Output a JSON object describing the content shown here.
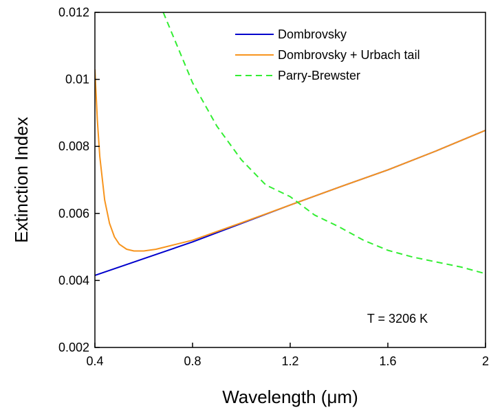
{
  "chart_data": {
    "type": "line",
    "xlabel": "Wavelength (μm)",
    "ylabel": "Extinction Index",
    "xlim": [
      0.4,
      2.0
    ],
    "ylim": [
      0.002,
      0.012
    ],
    "xticks": [
      "0.4",
      "0.8",
      "1.2",
      "1.6",
      "2"
    ],
    "yticks": [
      "0.002",
      "0.004",
      "0.006",
      "0.008",
      "0.01",
      "0.012"
    ],
    "grid": false,
    "legend_position": "top-right",
    "annotation": "T = 3206 K",
    "series": [
      {
        "name": "Dombrovsky",
        "color": "#0000cc",
        "style": "solid",
        "x": [
          0.4,
          0.6,
          0.8,
          1.0,
          1.2,
          1.4,
          1.6,
          1.8,
          2.0
        ],
        "y": [
          0.00415,
          0.00465,
          0.00515,
          0.0057,
          0.00625,
          0.00678,
          0.0073,
          0.00787,
          0.00848
        ]
      },
      {
        "name": "Dombrovsky + Urbach tail",
        "color": "#f7941d",
        "style": "solid",
        "x": [
          0.4,
          0.41,
          0.42,
          0.44,
          0.46,
          0.48,
          0.5,
          0.53,
          0.56,
          0.6,
          0.65,
          0.7,
          0.8,
          1.0,
          1.2,
          1.4,
          1.6,
          1.8,
          2.0
        ],
        "y": [
          0.0103,
          0.0088,
          0.0077,
          0.0064,
          0.0057,
          0.0053,
          0.00508,
          0.00493,
          0.00488,
          0.00488,
          0.00493,
          0.00502,
          0.0052,
          0.00572,
          0.00625,
          0.00678,
          0.0073,
          0.00787,
          0.00848
        ]
      },
      {
        "name": "Parry-Brewster",
        "color": "#33ee33",
        "style": "dashed",
        "x": [
          0.68,
          0.72,
          0.76,
          0.8,
          0.9,
          1.0,
          1.1,
          1.2,
          1.3,
          1.4,
          1.5,
          1.6,
          1.7,
          1.8,
          1.9,
          2.0
        ],
        "y": [
          0.012,
          0.0113,
          0.0106,
          0.0099,
          0.0086,
          0.0076,
          0.00685,
          0.0065,
          0.00595,
          0.0056,
          0.0052,
          0.0049,
          0.0047,
          0.00455,
          0.0044,
          0.0042
        ]
      }
    ]
  }
}
